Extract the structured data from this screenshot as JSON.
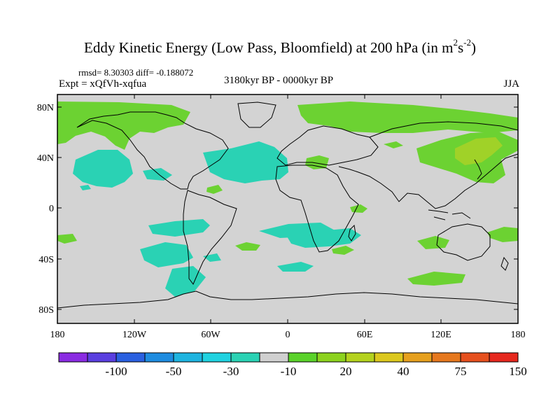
{
  "title": {
    "main": "Eddy Kinetic Energy (Low Pass, Bloomfield) at 200 hPa (in m",
    "sup1": "2",
    "mid": "s",
    "sup2": "-2",
    "end": ")"
  },
  "stats": "rmsd= 8.30303 diff= -0.188072",
  "experiment": "Expt = xQfVh-xqfua",
  "period": "3180kyr BP - 0000kyr BP",
  "season": "JJA",
  "axes": {
    "lat_labels": [
      "80N",
      "40N",
      "0",
      "40S",
      "80S"
    ],
    "lon_labels": [
      "180",
      "120W",
      "60W",
      "0",
      "60E",
      "120E",
      "180"
    ]
  },
  "colorbar": {
    "colors": [
      "#8a2be2",
      "#5a3fe0",
      "#2a60e0",
      "#1e8ce0",
      "#1eb4e0",
      "#20d2e0",
      "#2ad2b4",
      "#d0d0d0",
      "#5ad22a",
      "#8cd21e",
      "#b4d21e",
      "#dcc81e",
      "#e6a01e",
      "#e6781e",
      "#e6501e",
      "#e6281e"
    ],
    "labels": [
      "-100",
      "-50",
      "-30",
      "-10",
      "20",
      "40",
      "75",
      "150"
    ]
  },
  "colors": {
    "land_background": "#d3d3d3",
    "negative_fill": "#2ad2b4",
    "positive_fill": "#6cd232",
    "strong_positive_fill": "#a0d228"
  }
}
